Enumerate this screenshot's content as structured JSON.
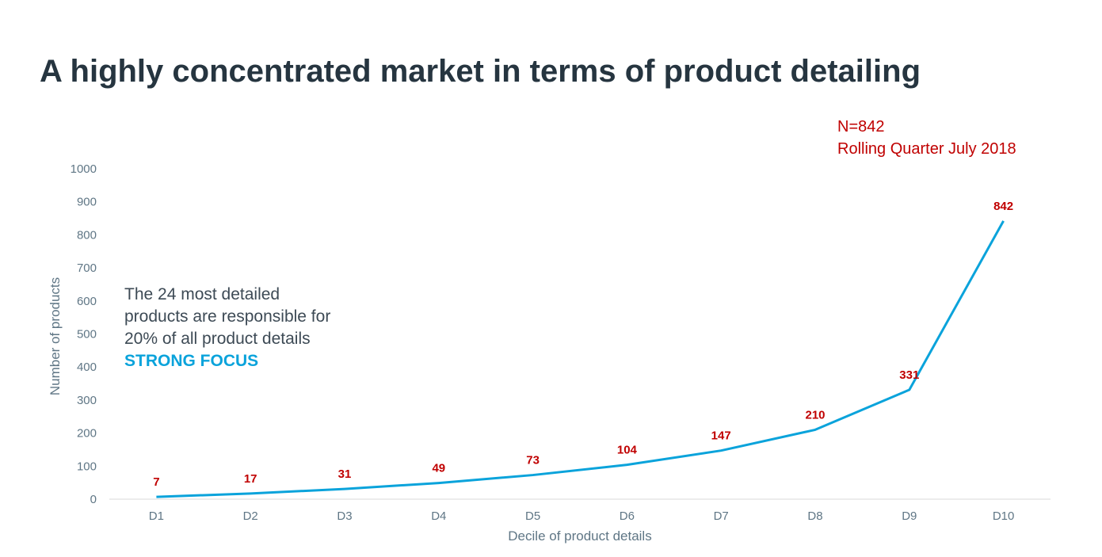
{
  "title": "A highly concentrated market in terms of product detailing",
  "note": {
    "line1": "N=842",
    "line2": "Rolling Quarter July 2018"
  },
  "callout": {
    "line1": "The 24 most detailed",
    "line2": "products are responsible for",
    "line3": "20% of all product details",
    "emphasis": "STRONG FOCUS"
  },
  "colors": {
    "line": "#0aa3db",
    "data_label": "#c00000",
    "title": "#263540",
    "axis_text": "#5f7685",
    "emphasis": "#0aa3db"
  },
  "chart_data": {
    "type": "line",
    "categories": [
      "D1",
      "D2",
      "D3",
      "D4",
      "D5",
      "D6",
      "D7",
      "D8",
      "D9",
      "D10"
    ],
    "series": [
      {
        "values": [
          7,
          17,
          31,
          49,
          73,
          104,
          147,
          210,
          331,
          842
        ]
      }
    ],
    "ylim": [
      0,
      1000
    ],
    "yticks": [
      0,
      100,
      200,
      300,
      400,
      500,
      600,
      700,
      800,
      900,
      1000
    ],
    "xlabel": "Decile of product details",
    "ylabel": "Number of products",
    "grid": false,
    "data_labels": true
  }
}
